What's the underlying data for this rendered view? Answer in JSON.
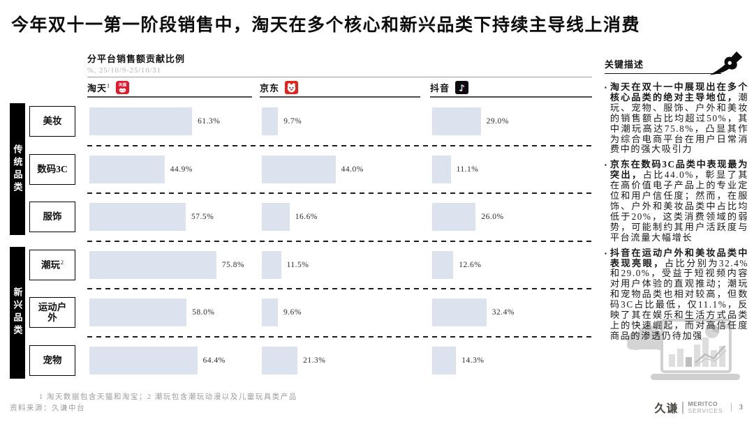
{
  "slide": {
    "title": "今年双十一第一阶段销售中，淘天在多个核心和新兴品类下持续主导线上消费",
    "page_number": "3"
  },
  "chart": {
    "title": "分平台销售额贡献比例",
    "subtitle": "%, 25/10/9-25/10/31"
  },
  "chart_data": {
    "type": "bar",
    "orientation": "horizontal",
    "title": "分平台销售额贡献比例",
    "unit": "%, 25/10/9-25/10/31",
    "xlim": [
      0,
      100
    ],
    "grid": false,
    "bar_color": "#dde3ee",
    "value_suffix": "%",
    "categories": [
      {
        "text": "美妆"
      },
      {
        "text": "数码3C"
      },
      {
        "text": "服饰"
      },
      {
        "text": "潮玩",
        "sup": "2"
      },
      {
        "text": "运动户外",
        "two_line": true
      },
      {
        "text": "宠物"
      }
    ],
    "category_groups": [
      {
        "label": "传统品类",
        "span": [
          0,
          2
        ]
      },
      {
        "label": "新兴品类",
        "span": [
          3,
          5
        ]
      }
    ],
    "series": [
      {
        "name": "淘天",
        "sup": "1",
        "icon": "tmall-icon",
        "values": [
          61.3,
          44.9,
          57.5,
          75.8,
          58.0,
          64.4
        ]
      },
      {
        "name": "京东",
        "sup": "",
        "icon": "jd-icon",
        "values": [
          9.7,
          44.0,
          16.6,
          11.5,
          9.6,
          21.3
        ]
      },
      {
        "name": "抖音",
        "sup": "",
        "icon": "douyin-icon",
        "values": [
          29.0,
          11.1,
          26.0,
          12.6,
          32.4,
          14.3
        ]
      }
    ]
  },
  "annotations": {
    "header": "关键描述",
    "bullets": [
      {
        "bold": "淘天在双十一中展现出在多个核心品类的绝对主导地位，",
        "text": "潮玩、宠物、服饰、户外和美妆的销售额占比均超过50%，其中潮玩高达75.8%，凸显其作为综合电商平台在用户日常消费中的强大吸引力"
      },
      {
        "bold": "京东在数码3C品类中表现最为突出，",
        "text": "占比44.0%，彰显了其在高价值电子产品上的专业定位和用户信任度；然而，在服饰、户外和美妆品类中占比均低于20%，这类消费领域的弱势，可能制约其用户活跃度与平台流量大幅增长"
      },
      {
        "bold": "抖音在运动户外和美妆品类中表现亮眼，",
        "text": "占比分别为32.4%和29.0%，受益于短视频内容对用户体验的直观推动；潮玩和宠物品类也相对较高，但数码3C占比最低，仅11.1%，反映了其在娱乐和生活方式品类上的快速崛起，而对高信任度商品的渗透仍待加强"
      }
    ]
  },
  "footer": {
    "footnote": "1  淘天数据包含天猫和淘宝；2  潮玩包含潮玩动漫以及儿童玩具类产品",
    "source": "资料来源：久谦中台",
    "logo_cn": "久谦",
    "logo_en_line1": "MERITCO",
    "logo_en_line2": "SERVICES"
  },
  "colors": {
    "bar": "#dde3ee",
    "tmall_red": "#e2172c",
    "jd_red": "#e1251b",
    "douyin_black": "#0a0a0f",
    "group_bar": "#000000"
  }
}
